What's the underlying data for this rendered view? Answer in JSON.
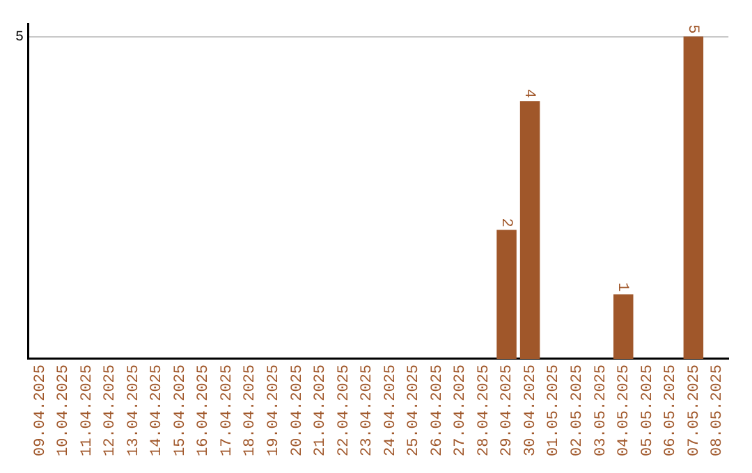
{
  "chart_data": {
    "type": "bar",
    "categories": [
      "09.04.2025",
      "10.04.2025",
      "11.04.2025",
      "12.04.2025",
      "13.04.2025",
      "14.04.2025",
      "15.04.2025",
      "16.04.2025",
      "17.04.2025",
      "18.04.2025",
      "19.04.2025",
      "20.04.2025",
      "21.04.2025",
      "22.04.2025",
      "23.04.2025",
      "24.04.2025",
      "25.04.2025",
      "26.04.2025",
      "27.04.2025",
      "28.04.2025",
      "29.04.2025",
      "30.04.2025",
      "01.05.2025",
      "02.05.2025",
      "03.05.2025",
      "04.05.2025",
      "05.05.2025",
      "06.05.2025",
      "07.05.2025",
      "08.05.2025"
    ],
    "values": [
      null,
      null,
      null,
      null,
      null,
      null,
      null,
      null,
      null,
      null,
      null,
      null,
      null,
      null,
      null,
      null,
      null,
      null,
      null,
      null,
      2,
      4,
      null,
      null,
      null,
      1,
      null,
      null,
      5,
      null
    ],
    "color": "#a0572a",
    "ylim": [
      0,
      5.2
    ],
    "yticks": [
      5
    ],
    "grid": "y",
    "data_labels": true,
    "legend": false
  }
}
